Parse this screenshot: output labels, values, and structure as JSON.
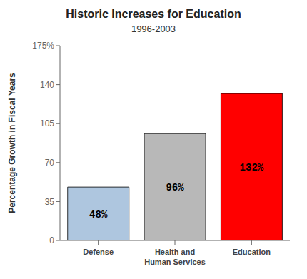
{
  "chart_data": {
    "type": "bar",
    "title": "Historic Increases for Education",
    "subtitle": "1996-2003",
    "ylabel": "Percentage Growth in Fiscal Years",
    "categories": [
      "Defense",
      "Health and\nHuman Services",
      "Education"
    ],
    "values": [
      48,
      96,
      132
    ],
    "value_labels": [
      "48%",
      "96%",
      "132%"
    ],
    "data_labels": true,
    "colors": [
      "#aec6df",
      "#b8b8b8",
      "#ff0000"
    ],
    "ylim": [
      0,
      175
    ],
    "yticks": [
      0,
      35,
      70,
      105,
      140,
      {
        "value": 175,
        "label": "175%"
      }
    ],
    "grid": false
  }
}
